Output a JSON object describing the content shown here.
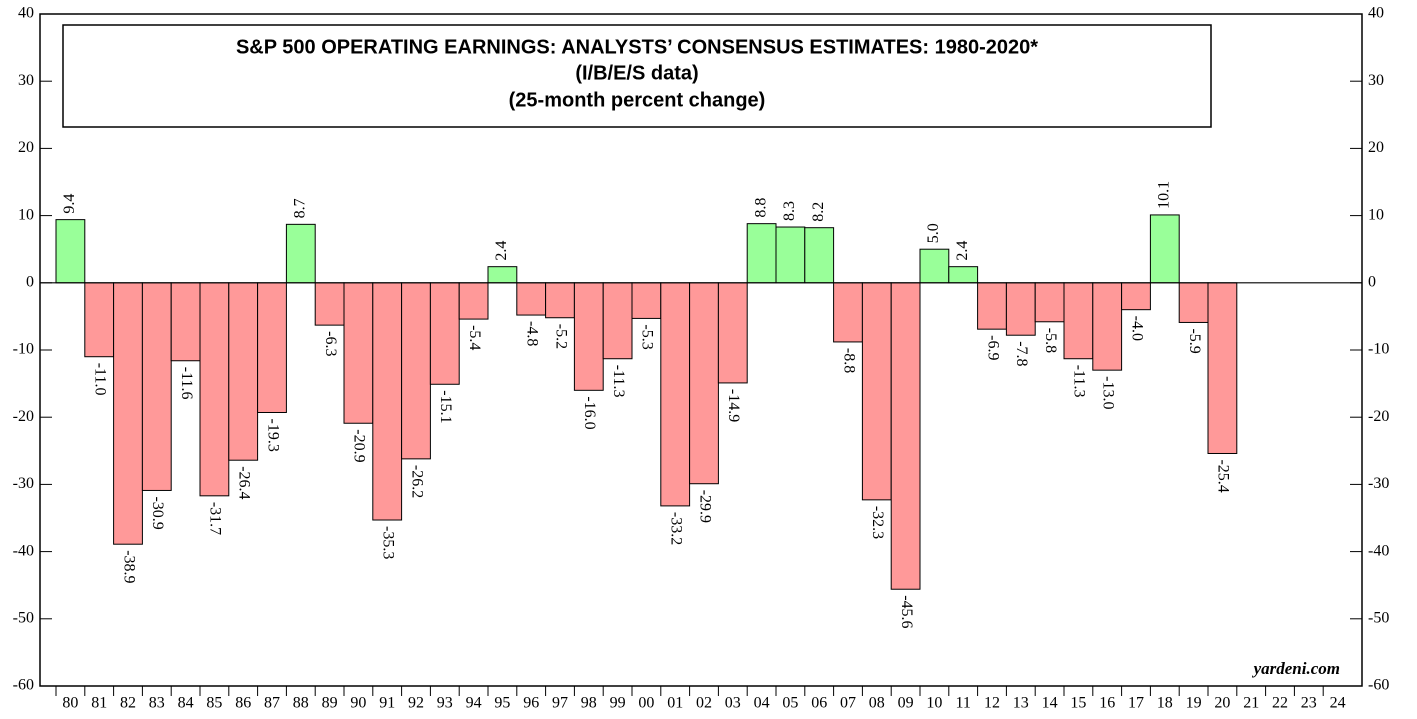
{
  "chart_data": {
    "type": "bar",
    "title": "S&P 500 OPERATING EARNINGS: ANALYSTS’ CONSENSUS ESTIMATES: 1980-2020*",
    "subtitle": "(I/B/E/S data)",
    "subtitle2": "(25-month percent change)",
    "annotation": "yardeni.com",
    "categories": [
      "80",
      "81",
      "82",
      "83",
      "84",
      "85",
      "86",
      "87",
      "88",
      "89",
      "90",
      "91",
      "92",
      "93",
      "94",
      "95",
      "96",
      "97",
      "98",
      "99",
      "00",
      "01",
      "02",
      "03",
      "04",
      "05",
      "06",
      "07",
      "08",
      "09",
      "10",
      "11",
      "12",
      "13",
      "14",
      "15",
      "16",
      "17",
      "18",
      "19",
      "20",
      "21",
      "22",
      "23",
      "24"
    ],
    "values": [
      9.4,
      -11.0,
      -38.9,
      -30.9,
      -11.6,
      -31.7,
      -26.4,
      -19.3,
      8.7,
      -6.3,
      -20.9,
      -35.3,
      -26.2,
      -15.1,
      -5.4,
      2.4,
      -4.8,
      -5.2,
      -16.0,
      -11.3,
      -5.3,
      -33.2,
      -29.9,
      -14.9,
      8.8,
      8.3,
      8.2,
      -8.8,
      -32.3,
      -45.6,
      5.0,
      2.4,
      -6.9,
      -7.8,
      -5.8,
      -11.3,
      -13.0,
      -4.0,
      10.1,
      -5.9,
      -25.4,
      null,
      null,
      null,
      null
    ],
    "value_labels": [
      "9.4",
      "-11.0",
      "-38.9",
      "-30.9",
      "-11.6",
      "-31.7",
      "-26.4",
      "-19.3",
      "8.7",
      "-6.3",
      "-20.9",
      "-35.3",
      "-26.2",
      "-15.1",
      "-5.4",
      "2.4",
      "-4.8",
      "-5.2",
      "-16.0",
      "-11.3",
      "-5.3",
      "-33.2",
      "-29.9",
      "-14.9",
      "8.8",
      "8.3",
      "8.2",
      "-8.8",
      "-32.3",
      "-45.6",
      "5.0",
      "2.4",
      "-6.9",
      "-7.8",
      "-5.8",
      "-11.3",
      "-13.0",
      "-4.0",
      "10.1",
      "-5.9",
      "-25.4",
      null,
      null,
      null,
      null
    ],
    "positive_color": "#99ff99",
    "negative_color": "#ff9999",
    "ylim": [
      -60,
      40
    ],
    "yticks": [
      -60,
      -50,
      -40,
      -30,
      -20,
      -10,
      0,
      10,
      20,
      30,
      40
    ],
    "y2lim": [
      -60,
      40
    ],
    "y2ticks": [
      -60,
      -50,
      -40,
      -30,
      -20,
      -10,
      0,
      10,
      20,
      30,
      40
    ]
  }
}
